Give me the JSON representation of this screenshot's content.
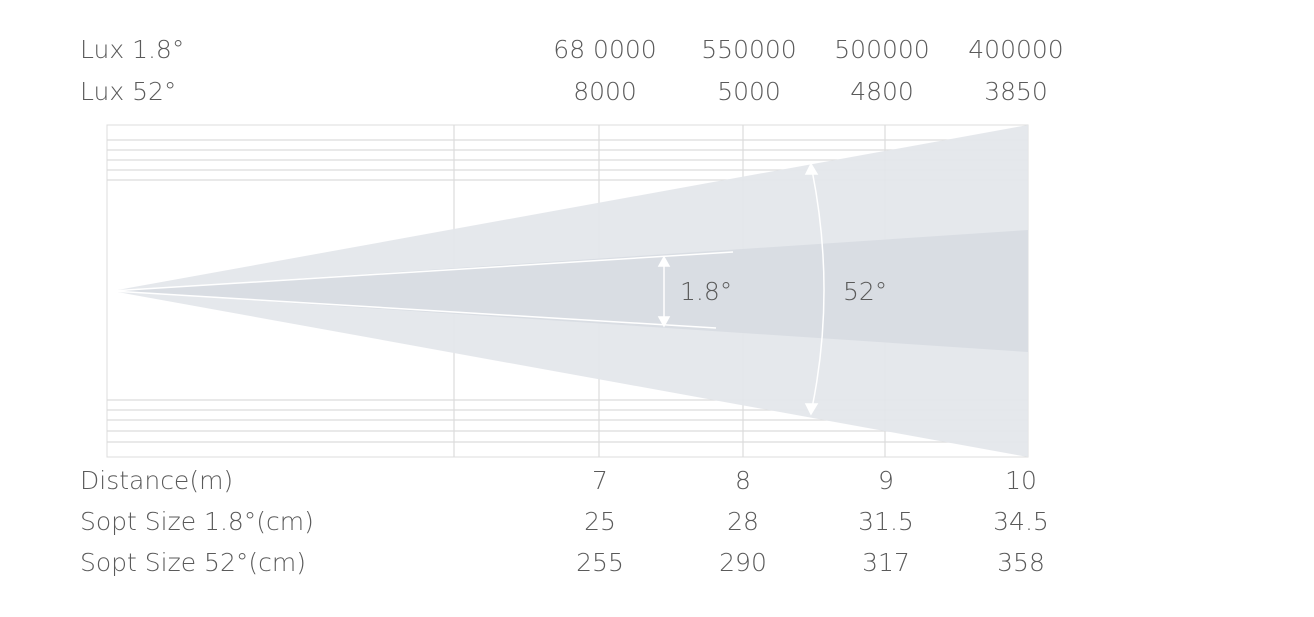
{
  "lux_rows": [
    {
      "label": "Lux 1.8°",
      "values": [
        "68 0000",
        550000,
        500000,
        400000
      ]
    },
    {
      "label": "Lux 52°",
      "values": [
        8000,
        5000,
        4800,
        3850
      ]
    }
  ],
  "diagram": {
    "narrow_angle": "1.8°",
    "wide_angle": "52°"
  },
  "spec_rows": [
    {
      "label": "Distance(m)",
      "values": [
        7,
        8,
        9,
        10
      ]
    },
    {
      "label": "Sopt Size 1.8°(cm)",
      "values": [
        25,
        28,
        31.5,
        34.5
      ]
    },
    {
      "label": "Sopt Size 52°(cm)",
      "values": [
        255,
        290,
        317,
        358
      ]
    }
  ]
}
